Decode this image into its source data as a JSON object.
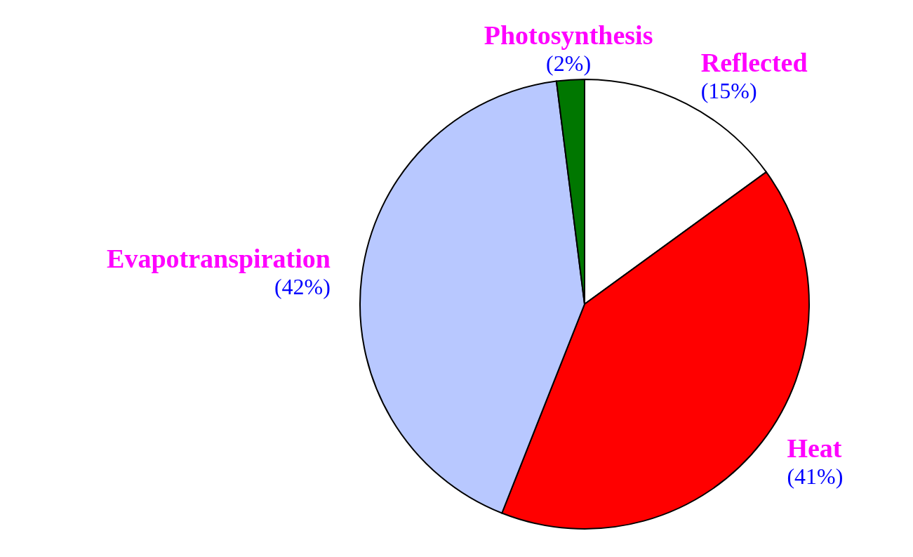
{
  "chart_data": {
    "type": "pie",
    "categories": [
      "Reflected",
      "Heat",
      "Evapotranspiration",
      "Photosynthesis"
    ],
    "values": [
      15,
      41,
      42,
      2
    ],
    "colors": [
      "#ffffff",
      "#ff0000",
      "#b8c8ff",
      "#007700"
    ],
    "value_labels": [
      "(15%)",
      "(41%)",
      "(42%)",
      "(2%)"
    ]
  }
}
